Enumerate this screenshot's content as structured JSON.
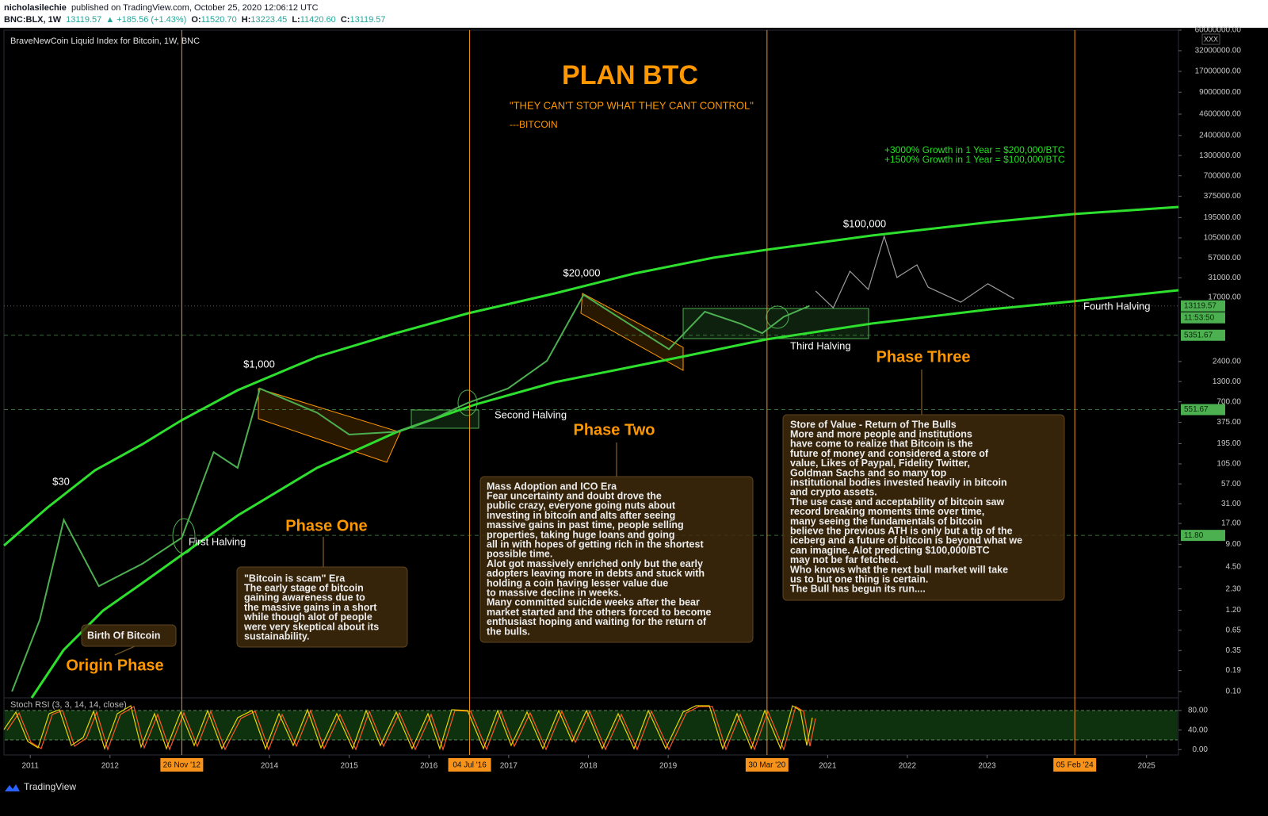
{
  "header": {
    "author": "nicholasilechie",
    "published": "published on TradingView.com, October 25, 2020 12:06:12 UTC",
    "symbol": "BNC:BLX, 1W",
    "last": "13119.57",
    "change": "▲ +185.56 (+1.43%)",
    "ohlc": [
      [
        "O:",
        "11520.70"
      ],
      [
        "H:",
        "13223.45"
      ],
      [
        "L:",
        "11420.60"
      ],
      [
        "C:",
        "13119.57"
      ]
    ]
  },
  "chart_data": {
    "type": "line",
    "title": "BraveNewCoin Liquid Index for Bitcoin, 1W, BNC",
    "currency": "XXX",
    "log_scale": true,
    "grid": false,
    "xlim": [
      2010.67,
      2025.4
    ],
    "xticks": [
      2011,
      2012,
      2014,
      2015,
      2016,
      2017,
      2018,
      2019,
      2021,
      2022,
      2023,
      2025
    ],
    "ylim": [
      0.1,
      60000000
    ],
    "yticks": [
      {
        "value": 60000000,
        "label": "60000000.00"
      },
      {
        "value": 32000000,
        "label": "32000000.00"
      },
      {
        "value": 17000000,
        "label": "17000000.00"
      },
      {
        "value": 9000000,
        "label": "9000000.00"
      },
      {
        "value": 4600000,
        "label": "4600000.00"
      },
      {
        "value": 2400000,
        "label": "2400000.00"
      },
      {
        "value": 1300000,
        "label": "1300000.00"
      },
      {
        "value": 700000,
        "label": "700000.00"
      },
      {
        "value": 375000,
        "label": "375000.00"
      },
      {
        "value": 195000,
        "label": "195000.00"
      },
      {
        "value": 105000,
        "label": "105000.00"
      },
      {
        "value": 57000,
        "label": "57000.00"
      },
      {
        "value": 31000,
        "label": "31000.00"
      },
      {
        "value": 17000,
        "label": "17000.00"
      },
      {
        "value": 2400,
        "label": "2400.00"
      },
      {
        "value": 1300,
        "label": "1300.00"
      },
      {
        "value": 700,
        "label": "700.00"
      },
      {
        "value": 375,
        "label": "375.00"
      },
      {
        "value": 195,
        "label": "195.00"
      },
      {
        "value": 105,
        "label": "105.00"
      },
      {
        "value": 57,
        "label": "57.00"
      },
      {
        "value": 31,
        "label": "31.00"
      },
      {
        "value": 17,
        "label": "17.00"
      },
      {
        "value": 9,
        "label": "9.00"
      },
      {
        "value": 4.5,
        "label": "4.50"
      },
      {
        "value": 2.3,
        "label": "2.30"
      },
      {
        "value": 1.2,
        "label": "1.20"
      },
      0.65,
      0.35,
      0.19,
      {
        "value": 0.1,
        "label": "0.10"
      }
    ],
    "series": [
      {
        "color": "#4caf50",
        "x": [
          2010.77,
          2011.12,
          2011.42,
          2011.86,
          2012.41,
          2012.9,
          2013.3,
          2013.6,
          2013.88,
          2014.6,
          2015.0,
          2015.59,
          2016.0,
          2016.49,
          2016.99,
          2017.48,
          2017.94,
          2018.57,
          2019.01,
          2019.46,
          2019.91,
          2020.18,
          2020.45,
          2020.77
        ],
        "values": [
          0.1,
          0.9,
          19,
          2.5,
          5,
          11,
          150,
          93,
          1050,
          500,
          257,
          280,
          390,
          680,
          1050,
          2450,
          18400,
          6900,
          3500,
          11000,
          7600,
          5700,
          9400,
          13119.57
        ]
      },
      {
        "color": "#9e9e9e",
        "x": [
          2020.85,
          2021.07,
          2021.28,
          2021.51,
          2021.71,
          2021.87,
          2022.12,
          2022.26,
          2022.67,
          2023.01,
          2023.34
        ],
        "values": [
          20700,
          12400,
          37900,
          21700,
          110000,
          31300,
          46000,
          23300,
          14700,
          25800,
          16300
        ]
      }
    ],
    "halvings": [
      {
        "label": "26 Nov '12",
        "x": 2012.9
      },
      {
        "label": "04 Jul '16",
        "x": 2016.51
      },
      {
        "label": "30 Mar '20",
        "x": 2020.24
      },
      {
        "label": "05 Feb '24",
        "x": 2024.1
      }
    ],
    "price_lines": {
      "values": [
        13119.57,
        5351.67,
        551.67,
        11.8
      ],
      "value_labels": [
        "13119.57",
        "5351.67",
        "551.67",
        "11.80"
      ]
    },
    "countdown": "11:53:50",
    "oscillator": {
      "label": "Stoch RSI (3, 3, 14, 14, close)",
      "ylim": [
        -11,
        106
      ],
      "yticks": [
        {
          "value": 80,
          "label": "80.00"
        },
        {
          "value": 40,
          "label": "40.00"
        },
        {
          "value": 0,
          "label": "0.00"
        }
      ]
    }
  },
  "annotations": {
    "title": "PLAN BTC",
    "quote": "\"THEY CAN'T STOP WHAT THEY CANT CONTROL\"",
    "signature": "---BITCOIN",
    "growth": [
      "+3000% Growth in 1 Year = $200,000/BTC",
      "+1500% Growth in 1 Year = $100,000/BTC"
    ],
    "price_targets": [
      "$30",
      "$1,000",
      "$20,000",
      "$100,000"
    ],
    "halving_notes": [
      "First Halving",
      "Second Halving",
      "Third Halving",
      "Fourth Halving"
    ],
    "phases": [
      {
        "title": "Origin Phase",
        "lines": [
          "Birth Of Bitcoin"
        ]
      },
      {
        "title": "Phase One",
        "lines": [
          "\"Bitcoin is scam\" Era",
          "The early stage of bitcoin",
          "gaining awareness due to",
          "the massive gains in a short",
          "while though alot of people",
          "were very skeptical about its",
          "sustainability."
        ]
      },
      {
        "title": "Phase Two",
        "lines": [
          "Mass Adoption and ICO Era",
          "Fear uncertainty and doubt drove the",
          "public crazy, everyone going nuts about",
          "investing in bitcoin and alts after seeing",
          "massive gains in past time, people selling",
          "properties, taking huge loans and going",
          "all in with hopes of getting rich in the shortest",
          "possible time.",
          "Alot got massively enriched only but the early",
          "adopters leaving more in debts and stuck with",
          "holding a coin having lesser value due",
          "to massive decline in weeks.",
          "Many committed suicide weeks after the bear",
          "market started and the others forced to become",
          "enthusiast hoping and waiting for the return of",
          "the bulls."
        ]
      },
      {
        "title": "Phase Three",
        "lines": [
          "Store of Value - Return of The Bulls",
          "More and more people and institutions",
          "have come to realize that Bitcoin is the",
          "future of money and considered a store of",
          "value, Likes of Paypal, Fidelity Twitter,",
          "Goldman Sachs and so many top",
          "institutional bodies invested heavily in bitcoin",
          "and crypto assets.",
          "The use case and acceptability of bitcoin saw",
          "record breaking moments time over time,",
          "many seeing the fundamentals of bitcoin",
          "believe the previous ATH is only but a tip of the",
          "iceberg and a future of bitcoin is beyond what we",
          "can imagine. Alot predicting $100,000/BTC",
          "may not be far fetched.",
          "Who knows what the next bull market will take",
          "us to but one thing is certain.",
          "The Bull has begun its run...."
        ]
      }
    ]
  },
  "footer": {
    "brand": "TradingView"
  }
}
